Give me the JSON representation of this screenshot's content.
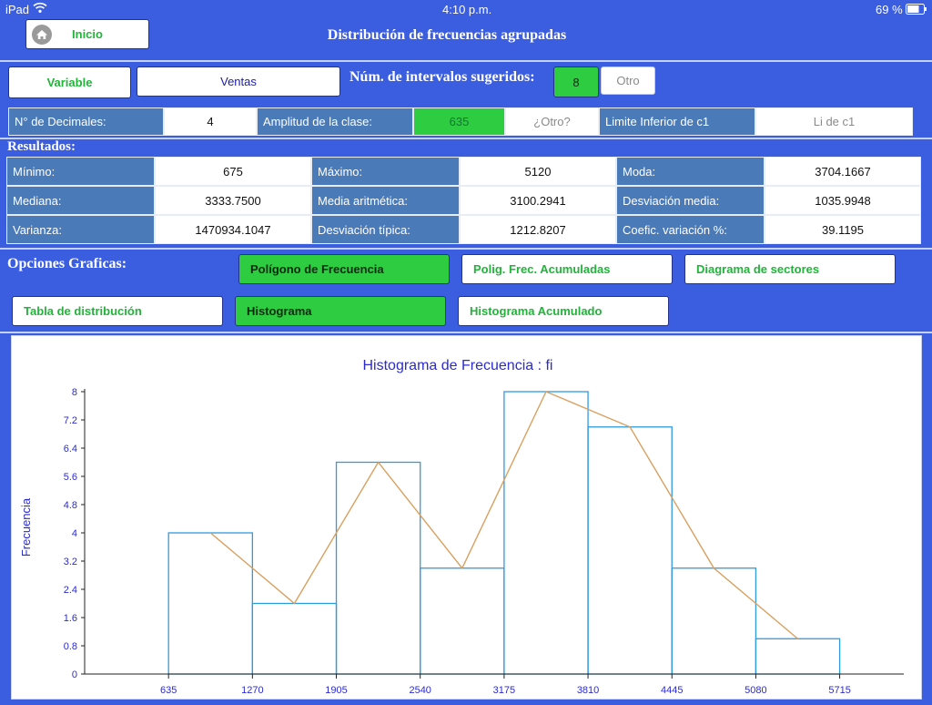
{
  "status_bar": {
    "device": "iPad",
    "time": "4:10 p.m.",
    "battery": "69 %"
  },
  "header": {
    "home_label": "Inicio",
    "title": "Distribución de frecuencias agrupadas"
  },
  "controls": {
    "variable_button": "Variable",
    "variable_value": "Ventas",
    "intervals_label": "Núm. de intervalos sugeridos:",
    "intervals_value": "8",
    "intervals_other": "Otro",
    "decimals_label": "N° de Decimales:",
    "decimals_value": "4",
    "class_width_label": "Amplitud de la clase:",
    "class_width_value": "635",
    "class_width_other_placeholder": "¿Otro?",
    "lower_limit_label": "Limite Inferior de c1",
    "lower_limit_placeholder": "Li de c1"
  },
  "results": {
    "heading": "Resultados:",
    "rows": [
      [
        {
          "label": "Mínimo:",
          "value": "675"
        },
        {
          "label": "Máximo:",
          "value": "5120"
        },
        {
          "label": "Moda:",
          "value": "3704.1667"
        }
      ],
      [
        {
          "label": "Mediana:",
          "value": "3333.7500"
        },
        {
          "label": "Media aritmética:",
          "value": "3100.2941"
        },
        {
          "label": "Desviación media:",
          "value": "1035.9948"
        }
      ],
      [
        {
          "label": "Varianza:",
          "value": "1470934.1047"
        },
        {
          "label": "Desviación típica:",
          "value": "1212.8207"
        },
        {
          "label": "Coefic.  variación %:",
          "value": "39.1195"
        }
      ]
    ]
  },
  "graph_options": {
    "heading": "Opciones Graficas:",
    "buttons": [
      "Polígono de Frecuencia",
      "Polig. Frec. Acumuladas",
      "Diagrama de sectores",
      "Tabla de distribución",
      "Histograma",
      "Histograma Acumulado"
    ]
  },
  "colors": {
    "background": "#3b5ee0",
    "accent_green": "#2ecc40",
    "label_cell": "#4a7ab8",
    "bar_stroke": "#2f9ae0",
    "polygon": "#d9a05f",
    "chart_text": "#2b2bd1"
  },
  "chart_data": {
    "type": "bar",
    "title": "Histograma de Frecuencia : fi",
    "ylabel": "Frecuencia",
    "xlabel": "",
    "x_ticks": [
      635,
      1270,
      1905,
      2540,
      3175,
      3810,
      4445,
      5080,
      5715
    ],
    "y_ticks": [
      0,
      0.8,
      1.6,
      2.4,
      3.2,
      4,
      4.8,
      5.6,
      6.4,
      7.2,
      8
    ],
    "ylim": [
      0,
      8
    ],
    "bins": [
      [
        635,
        1270
      ],
      [
        1270,
        1905
      ],
      [
        1905,
        2540
      ],
      [
        2540,
        3175
      ],
      [
        3175,
        3810
      ],
      [
        3810,
        4445
      ],
      [
        4445,
        5080
      ],
      [
        5080,
        5715
      ]
    ],
    "values": [
      4,
      2,
      6,
      3,
      8,
      7,
      3,
      1
    ],
    "polygon": {
      "x": [
        952.5,
        1587.5,
        2222.5,
        2857.5,
        3492.5,
        4127.5,
        4762.5,
        5397.5
      ],
      "y": [
        4,
        2,
        6,
        3,
        8,
        7,
        3,
        1
      ]
    }
  }
}
